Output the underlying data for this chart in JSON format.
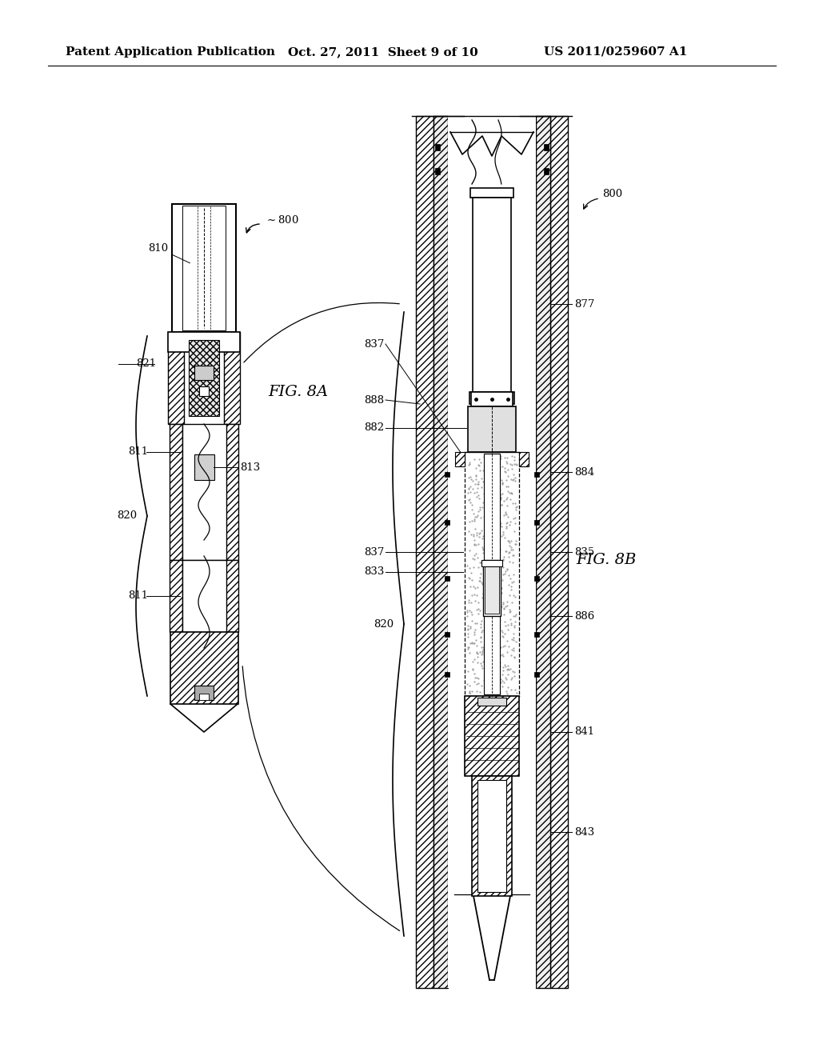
{
  "background_color": "#ffffff",
  "header_left": "Patent Application Publication",
  "header_center": "Oct. 27, 2011  Sheet 9 of 10",
  "header_right": "US 2011/0259607 A1",
  "fig_8a_label": "FIG. 8A",
  "fig_8b_label": "FIG. 8B",
  "header_fontsize": 11,
  "label_fontsize": 14,
  "ref_fontsize": 9.5,
  "line_color": "#000000"
}
